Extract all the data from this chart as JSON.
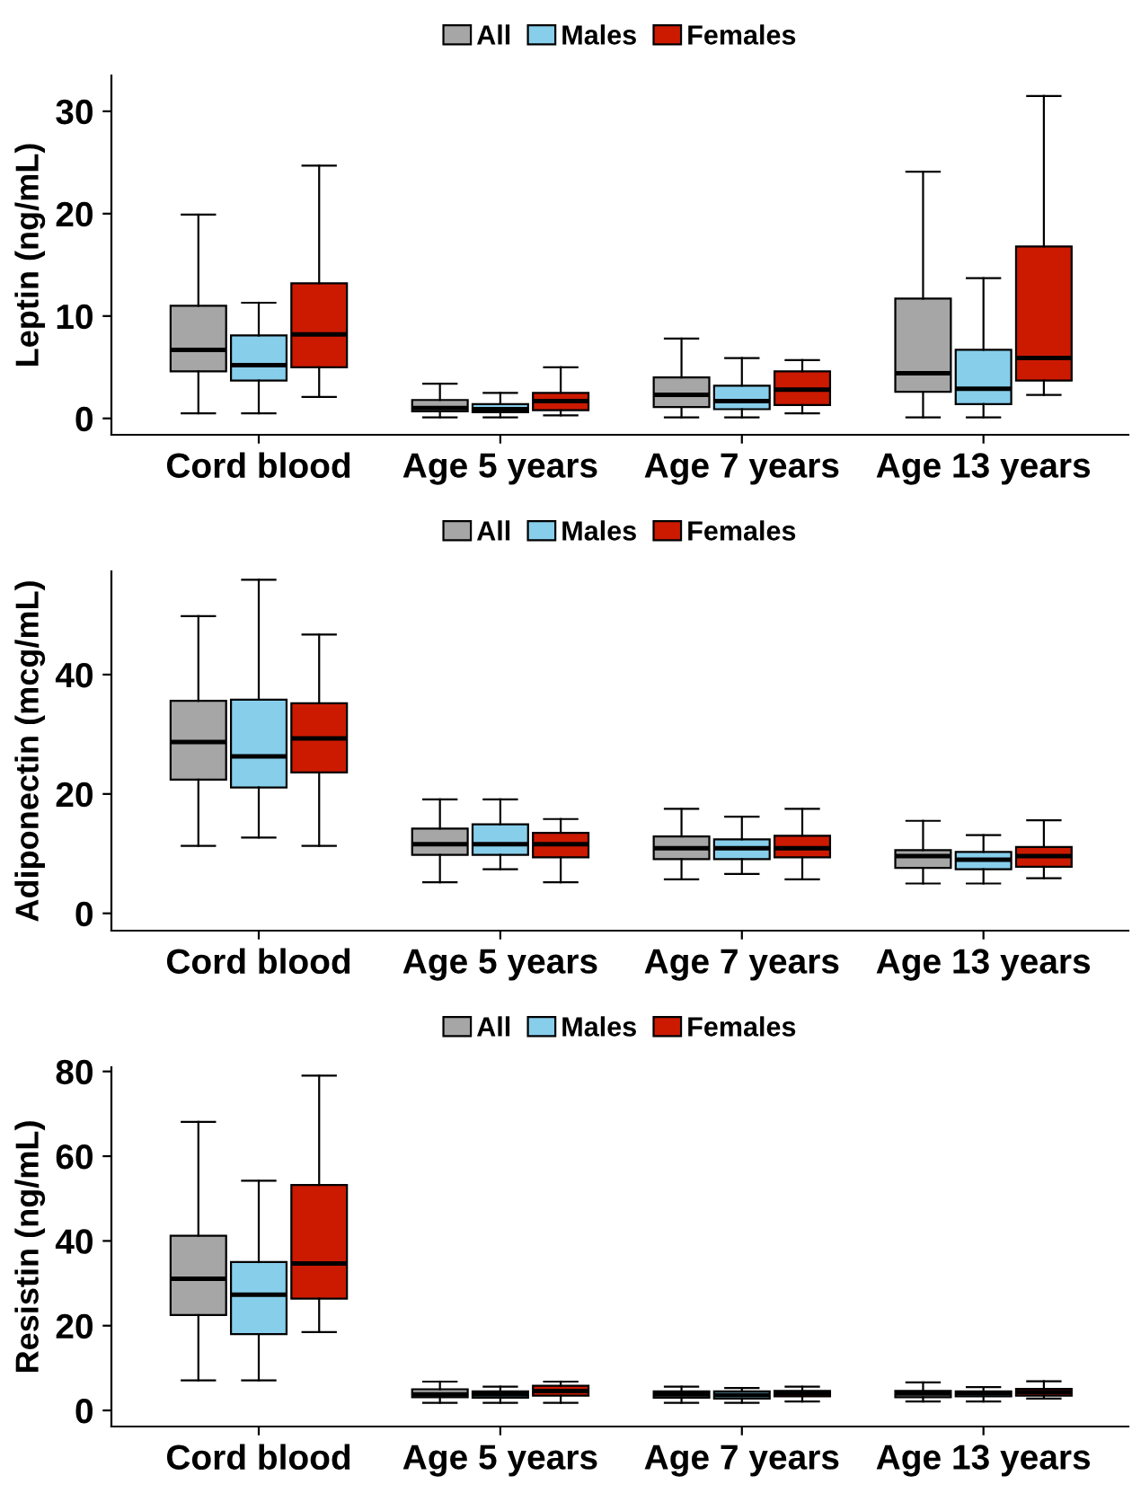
{
  "chart_data": [
    {
      "type": "box",
      "ylabel": "Leptin (ng/mL)",
      "categories": [
        "Cord blood",
        "Age 5 years",
        "Age 7 years",
        "Age 13 years"
      ],
      "ylim": [
        -1.6,
        33.5
      ],
      "yticks": [
        0,
        10,
        20,
        30
      ],
      "grid": false,
      "legend": "top",
      "series": [
        {
          "name": "All",
          "color": "#a6a6a6",
          "boxes": [
            {
              "low": 0.5,
              "q1": 4.6,
              "median": 6.7,
              "q3": 11.0,
              "high": 19.9
            },
            {
              "low": 0.1,
              "q1": 0.7,
              "median": 1.0,
              "q3": 1.8,
              "high": 3.4
            },
            {
              "low": 0.1,
              "q1": 1.1,
              "median": 2.3,
              "q3": 4.0,
              "high": 7.8
            },
            {
              "low": 0.1,
              "q1": 2.6,
              "median": 4.4,
              "q3": 11.7,
              "high": 24.1
            }
          ]
        },
        {
          "name": "Males",
          "color": "#87ceeb",
          "boxes": [
            {
              "low": 0.5,
              "q1": 3.7,
              "median": 5.2,
              "q3": 8.1,
              "high": 11.3
            },
            {
              "low": 0.1,
              "q1": 0.6,
              "median": 0.9,
              "q3": 1.4,
              "high": 2.5
            },
            {
              "low": 0.1,
              "q1": 0.9,
              "median": 1.7,
              "q3": 3.2,
              "high": 5.9
            },
            {
              "low": 0.1,
              "q1": 1.4,
              "median": 2.9,
              "q3": 6.7,
              "high": 13.7
            }
          ]
        },
        {
          "name": "Females",
          "color": "#cc1a00",
          "boxes": [
            {
              "low": 2.1,
              "q1": 5.0,
              "median": 8.2,
              "q3": 13.2,
              "high": 24.7
            },
            {
              "low": 0.3,
              "q1": 0.8,
              "median": 1.7,
              "q3": 2.5,
              "high": 5.0
            },
            {
              "low": 0.5,
              "q1": 1.3,
              "median": 2.8,
              "q3": 4.6,
              "high": 5.7
            },
            {
              "low": 2.3,
              "q1": 3.7,
              "median": 5.9,
              "q3": 16.8,
              "high": 31.5
            }
          ]
        }
      ]
    },
    {
      "type": "box",
      "ylabel": "Adiponectin (mcg/mL)",
      "categories": [
        "Cord blood",
        "Age 5 years",
        "Age 7 years",
        "Age 13 years"
      ],
      "ylim": [
        -2.9,
        57.3
      ],
      "yticks": [
        0,
        20,
        40
      ],
      "grid": false,
      "legend": "top",
      "series": [
        {
          "name": "All",
          "color": "#a6a6a6",
          "boxes": [
            {
              "low": 11.3,
              "q1": 22.4,
              "median": 28.7,
              "q3": 35.6,
              "high": 49.8
            },
            {
              "low": 5.2,
              "q1": 9.8,
              "median": 11.6,
              "q3": 14.2,
              "high": 19.1
            },
            {
              "low": 5.7,
              "q1": 9.1,
              "median": 10.9,
              "q3": 12.9,
              "high": 17.5
            },
            {
              "low": 5.0,
              "q1": 7.6,
              "median": 9.6,
              "q3": 10.6,
              "high": 15.5
            }
          ]
        },
        {
          "name": "Males",
          "color": "#87ceeb",
          "boxes": [
            {
              "low": 12.7,
              "q1": 21.1,
              "median": 26.3,
              "q3": 35.8,
              "high": 55.9
            },
            {
              "low": 7.4,
              "q1": 9.8,
              "median": 11.6,
              "q3": 14.9,
              "high": 19.1
            },
            {
              "low": 6.6,
              "q1": 9.1,
              "median": 10.9,
              "q3": 12.4,
              "high": 16.2
            },
            {
              "low": 5.0,
              "q1": 7.4,
              "median": 9.0,
              "q3": 10.3,
              "high": 13.1
            }
          ]
        },
        {
          "name": "Females",
          "color": "#cc1a00",
          "boxes": [
            {
              "low": 11.3,
              "q1": 23.6,
              "median": 29.3,
              "q3": 35.2,
              "high": 46.7
            },
            {
              "low": 5.2,
              "q1": 9.4,
              "median": 11.6,
              "q3": 13.5,
              "high": 15.8
            },
            {
              "low": 5.7,
              "q1": 9.4,
              "median": 10.9,
              "q3": 13.0,
              "high": 17.5
            },
            {
              "low": 5.9,
              "q1": 7.8,
              "median": 9.6,
              "q3": 11.1,
              "high": 15.6
            }
          ]
        }
      ]
    },
    {
      "type": "box",
      "ylabel": "Resistin (ng/mL)",
      "categories": [
        "Cord blood",
        "Age 5 years",
        "Age 7 years",
        "Age 13 years"
      ],
      "ylim": [
        -3.8,
        81
      ],
      "yticks": [
        0,
        20,
        40,
        60,
        80
      ],
      "grid": false,
      "legend": "top",
      "series": [
        {
          "name": "All",
          "color": "#a6a6a6",
          "boxes": [
            {
              "low": 7.1,
              "q1": 22.5,
              "median": 31.1,
              "q3": 41.2,
              "high": 68.1
            },
            {
              "low": 1.8,
              "q1": 3.1,
              "median": 3.8,
              "q3": 5.0,
              "high": 6.8
            },
            {
              "low": 1.8,
              "q1": 3.0,
              "median": 3.8,
              "q3": 4.5,
              "high": 5.6
            },
            {
              "low": 2.1,
              "q1": 3.1,
              "median": 4.0,
              "q3": 4.6,
              "high": 6.6
            }
          ]
        },
        {
          "name": "Males",
          "color": "#87ceeb",
          "boxes": [
            {
              "low": 7.1,
              "q1": 18.0,
              "median": 27.3,
              "q3": 35.0,
              "high": 54.2
            },
            {
              "low": 1.8,
              "q1": 3.0,
              "median": 3.8,
              "q3": 4.5,
              "high": 5.6
            },
            {
              "low": 1.8,
              "q1": 2.8,
              "median": 3.6,
              "q3": 4.5,
              "high": 5.3
            },
            {
              "low": 2.1,
              "q1": 3.3,
              "median": 4.0,
              "q3": 4.5,
              "high": 5.5
            }
          ]
        },
        {
          "name": "Females",
          "color": "#cc1a00",
          "boxes": [
            {
              "low": 18.5,
              "q1": 26.4,
              "median": 34.7,
              "q3": 53.2,
              "high": 79.0
            },
            {
              "low": 1.8,
              "q1": 3.5,
              "median": 4.6,
              "q3": 5.8,
              "high": 6.8
            },
            {
              "low": 2.1,
              "q1": 3.3,
              "median": 4.0,
              "q3": 4.6,
              "high": 5.6
            },
            {
              "low": 2.8,
              "q1": 3.5,
              "median": 4.3,
              "q3": 5.1,
              "high": 6.9
            }
          ]
        }
      ]
    }
  ]
}
